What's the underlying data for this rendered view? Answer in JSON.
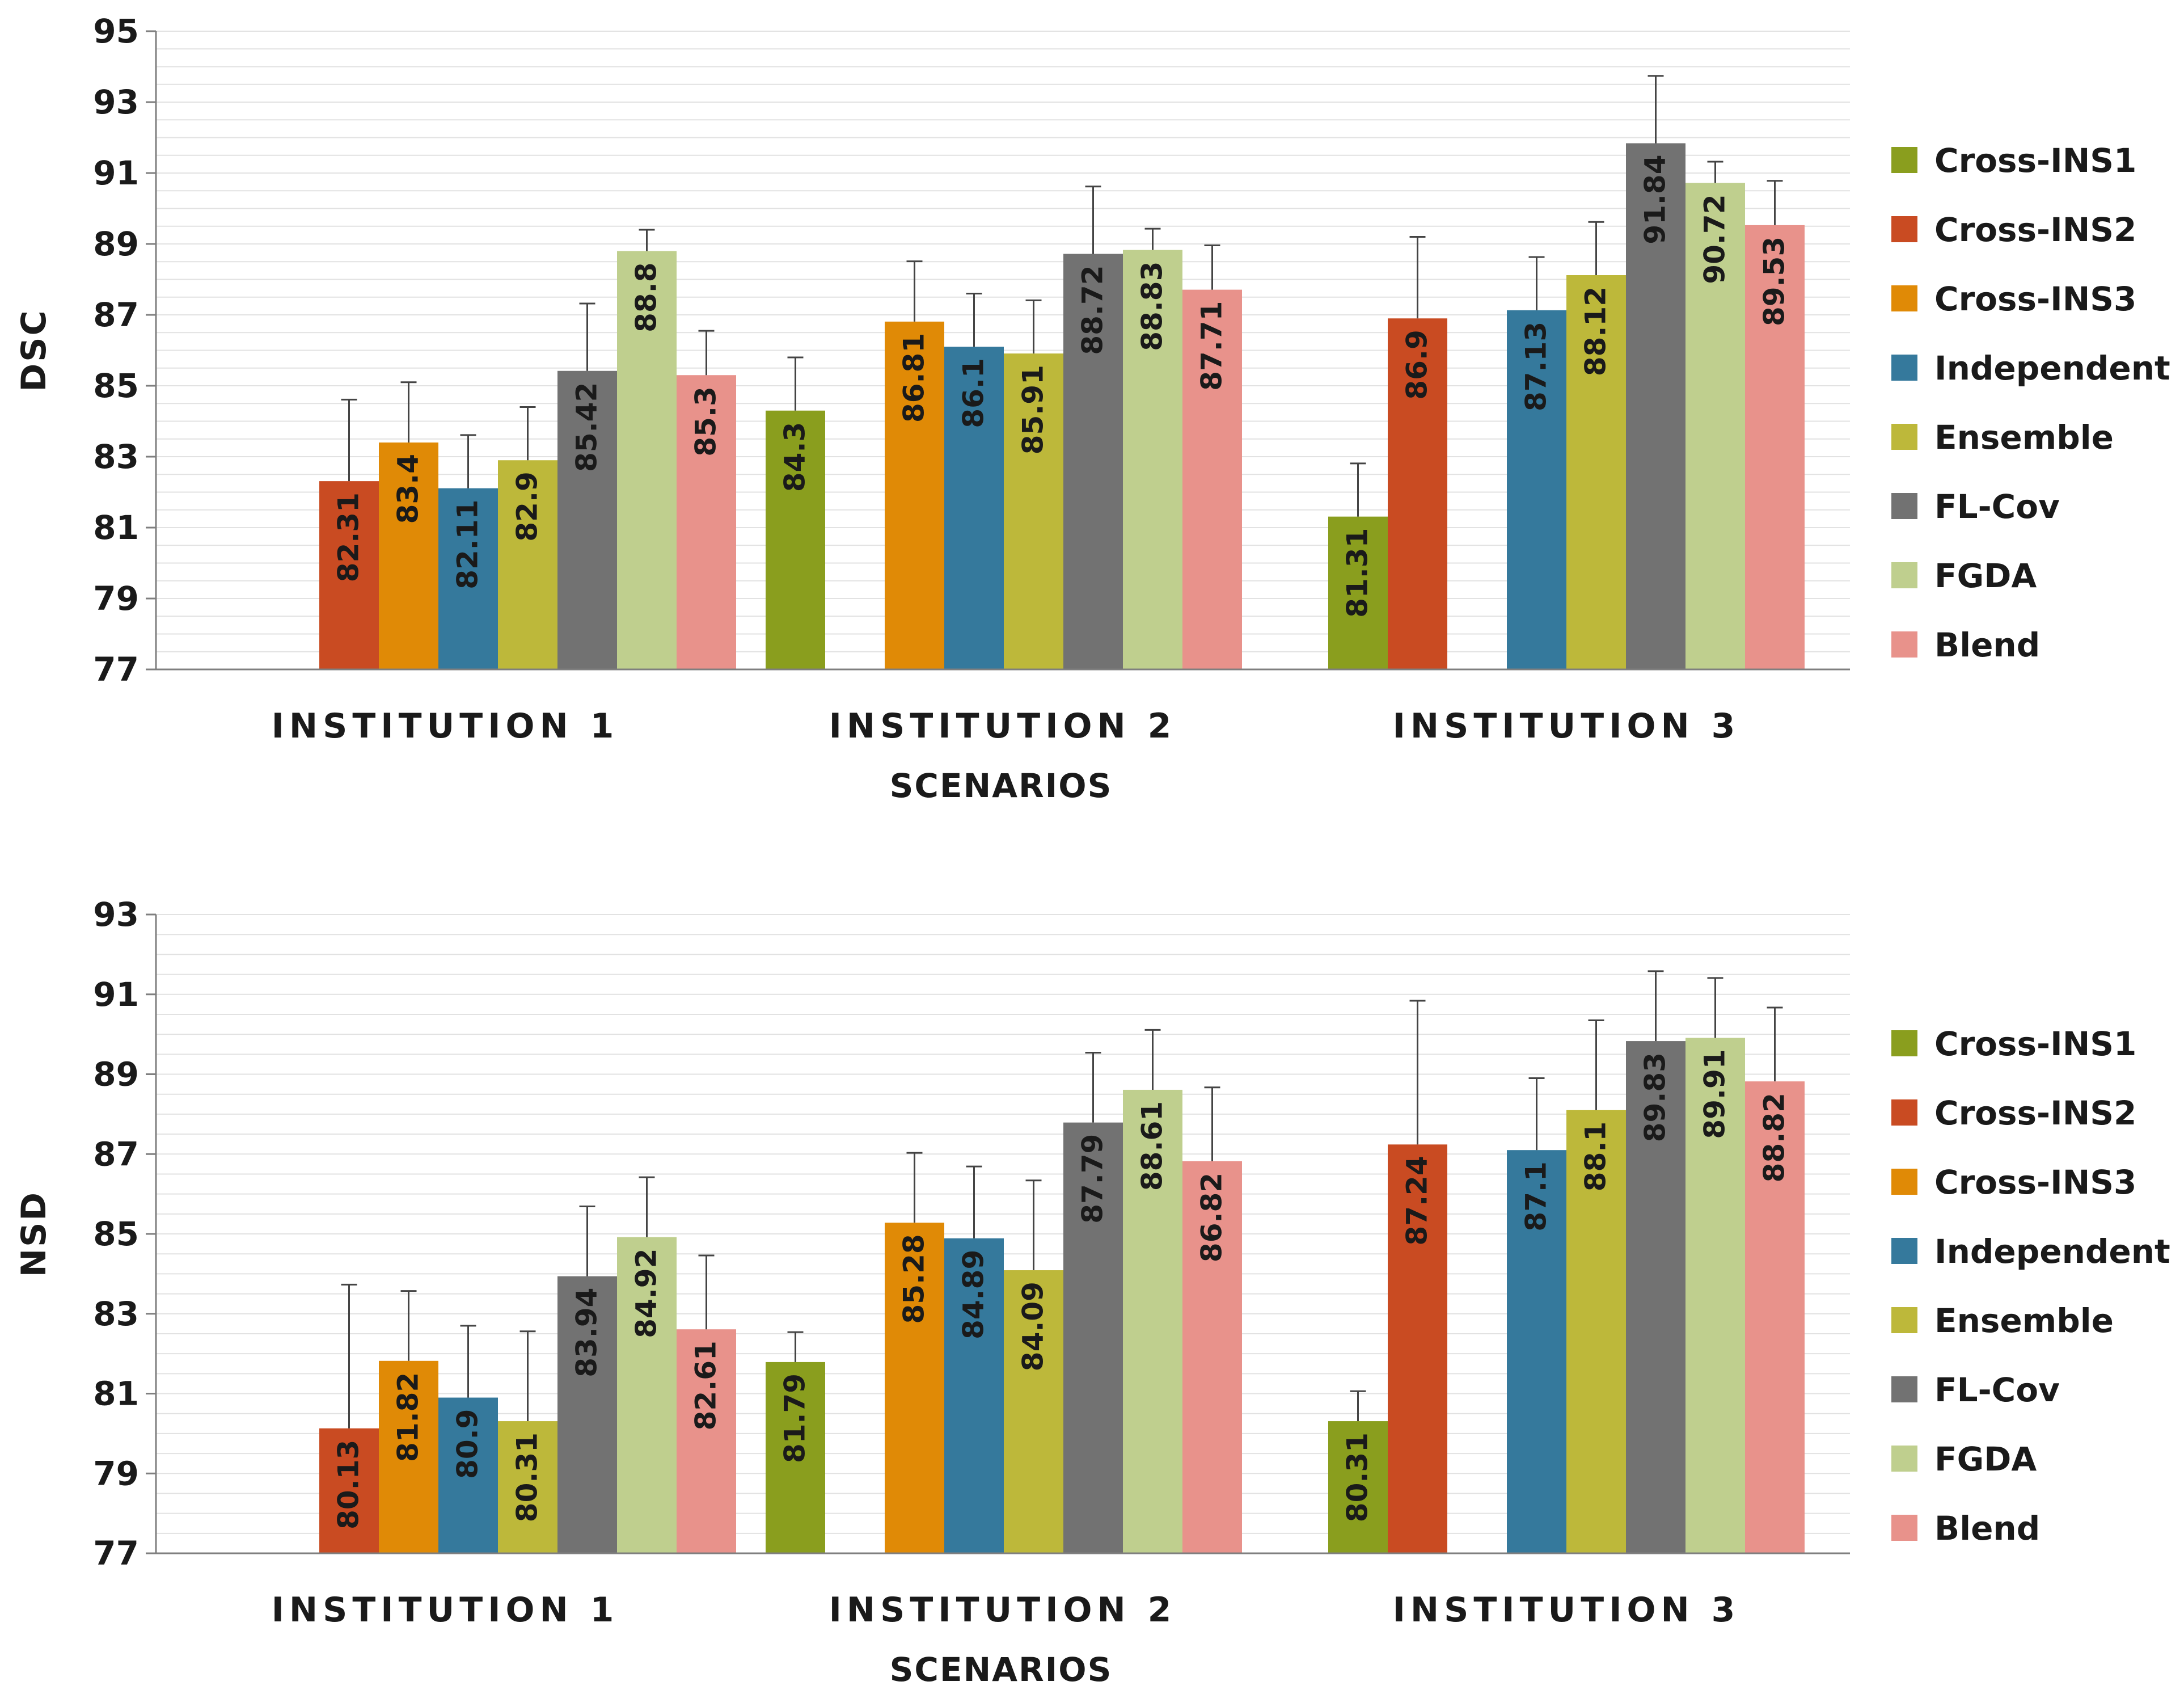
{
  "chart_data": [
    {
      "type": "bar",
      "title": "",
      "ylabel": "DSC",
      "xlabel": "SCENARIOS",
      "ylim": [
        77,
        95
      ],
      "yticks": [
        "77",
        "79",
        "81",
        "83",
        "85",
        "87",
        "89",
        "91",
        "93",
        "95"
      ],
      "grid": true,
      "legend_position": "right",
      "categories": [
        "INSTITUTION 1",
        "INSTITUTION 2",
        "INSTITUTION 3"
      ],
      "series": [
        {
          "name": "Cross-INS1",
          "color": "#8A9E1E",
          "values": [
            null,
            84.3,
            81.31
          ],
          "labels": [
            null,
            "84.3",
            "81.31"
          ],
          "errors": [
            null,
            1.5,
            1.5
          ]
        },
        {
          "name": "Cross-INS2",
          "color": "#C94B22",
          "values": [
            82.31,
            null,
            86.9
          ],
          "labels": [
            "82.31",
            null,
            "86.9"
          ],
          "errors": [
            2.3,
            null,
            2.3
          ]
        },
        {
          "name": "Cross-INS3",
          "color": "#E08A06",
          "values": [
            83.4,
            86.81,
            null
          ],
          "labels": [
            "83.4",
            "86.81",
            null
          ],
          "errors": [
            1.7,
            1.7,
            null
          ]
        },
        {
          "name": "Independent",
          "color": "#35799C",
          "values": [
            82.11,
            86.1,
            87.13
          ],
          "labels": [
            "82.11",
            "86.1",
            "87.13"
          ],
          "errors": [
            1.5,
            1.5,
            1.5
          ]
        },
        {
          "name": "Ensemble",
          "color": "#BDB83A",
          "values": [
            82.9,
            85.91,
            88.12
          ],
          "labels": [
            "82.9",
            "85.91",
            "88.12"
          ],
          "errors": [
            1.5,
            1.5,
            1.5
          ]
        },
        {
          "name": "FL-Cov",
          "color": "#727272",
          "values": [
            85.42,
            88.72,
            91.84
          ],
          "labels": [
            "85.42",
            "88.72",
            "91.84"
          ],
          "errors": [
            1.9,
            1.9,
            1.9
          ]
        },
        {
          "name": "FGDA",
          "color": "#BFCF8E",
          "values": [
            88.8,
            88.83,
            90.72
          ],
          "labels": [
            "88.8",
            "88.83",
            "90.72"
          ],
          "errors": [
            0.6,
            0.6,
            0.6
          ]
        },
        {
          "name": "Blend",
          "color": "#E8928B",
          "values": [
            85.3,
            87.71,
            89.53
          ],
          "labels": [
            "85.3",
            "87.71",
            "89.53"
          ],
          "errors": [
            1.25,
            1.25,
            1.25
          ]
        }
      ]
    },
    {
      "type": "bar",
      "title": "",
      "ylabel": "NSD",
      "xlabel": "SCENARIOS",
      "ylim": [
        77,
        93
      ],
      "yticks": [
        "77",
        "79",
        "81",
        "83",
        "85",
        "87",
        "89",
        "91",
        "93"
      ],
      "grid": true,
      "legend_position": "right",
      "categories": [
        "INSTITUTION 1",
        "INSTITUTION 2",
        "INSTITUTION 3"
      ],
      "series": [
        {
          "name": "Cross-INS1",
          "color": "#8A9E1E",
          "values": [
            null,
            81.79,
            80.31
          ],
          "labels": [
            null,
            "81.79",
            "80.31"
          ],
          "errors": [
            null,
            0.75,
            0.75
          ]
        },
        {
          "name": "Cross-INS2",
          "color": "#C94B22",
          "values": [
            80.13,
            null,
            87.24
          ],
          "labels": [
            "80.13",
            null,
            "87.24"
          ],
          "errors": [
            3.6,
            null,
            3.6
          ]
        },
        {
          "name": "Cross-INS3",
          "color": "#E08A06",
          "values": [
            81.82,
            85.28,
            null
          ],
          "labels": [
            "81.82",
            "85.28",
            null
          ],
          "errors": [
            1.75,
            1.75,
            null
          ]
        },
        {
          "name": "Independent",
          "color": "#35799C",
          "values": [
            80.9,
            84.89,
            87.1
          ],
          "labels": [
            "80.9",
            "84.89",
            "87.1"
          ],
          "errors": [
            1.8,
            1.8,
            1.8
          ]
        },
        {
          "name": "Ensemble",
          "color": "#BDB83A",
          "values": [
            80.31,
            84.09,
            88.1
          ],
          "labels": [
            "80.31",
            "84.09",
            "88.1"
          ],
          "errors": [
            2.25,
            2.25,
            2.25
          ]
        },
        {
          "name": "FL-Cov",
          "color": "#727272",
          "values": [
            83.94,
            87.79,
            89.83
          ],
          "labels": [
            "83.94",
            "87.79",
            "89.83"
          ],
          "errors": [
            1.75,
            1.75,
            1.75
          ]
        },
        {
          "name": "FGDA",
          "color": "#BFCF8E",
          "values": [
            84.92,
            88.61,
            89.91
          ],
          "labels": [
            "84.92",
            "88.61",
            "89.91"
          ],
          "errors": [
            1.5,
            1.5,
            1.5
          ]
        },
        {
          "name": "Blend",
          "color": "#E8928B",
          "values": [
            82.61,
            86.82,
            88.82
          ],
          "labels": [
            "82.61",
            "86.82",
            "88.82"
          ],
          "errors": [
            1.85,
            1.85,
            1.85
          ]
        }
      ]
    }
  ]
}
